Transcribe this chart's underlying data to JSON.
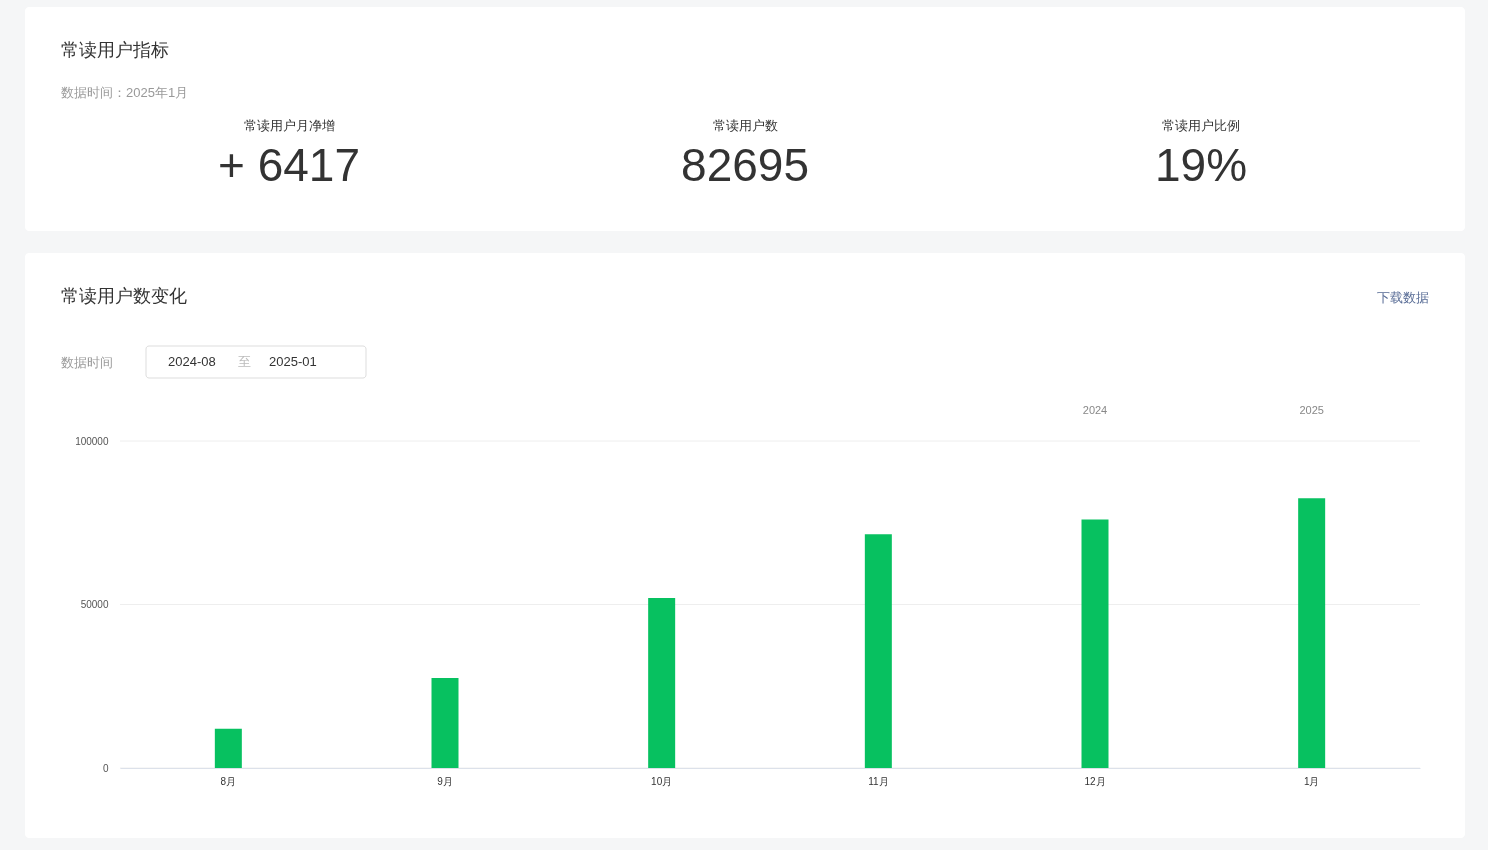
{
  "chart_data": [
    {
      "type": "other",
      "title": "常读用户指标",
      "subtitle": "数据时间：2025年1月",
      "annotations": [
        "常读用户月净增",
        "+ 6417",
        "常读用户数",
        "82695",
        "常读用户比例",
        "19%"
      ]
    },
    {
      "type": "bar",
      "title": "常读用户数变化",
      "categories": [
        "8月",
        "9月",
        "10月",
        "11月",
        "12月",
        "1月"
      ],
      "values": [
        12000,
        27500,
        52000,
        71500,
        76000,
        82500
      ],
      "color": "#07c160",
      "ylim": [
        0,
        100000
      ],
      "yticks": [
        0,
        50000,
        100000
      ],
      "grid": "y",
      "annotations": [
        "下载数据",
        "数据时间",
        "2024-08",
        "至",
        "2025-01",
        "2024",
        "2025"
      ]
    }
  ]
}
